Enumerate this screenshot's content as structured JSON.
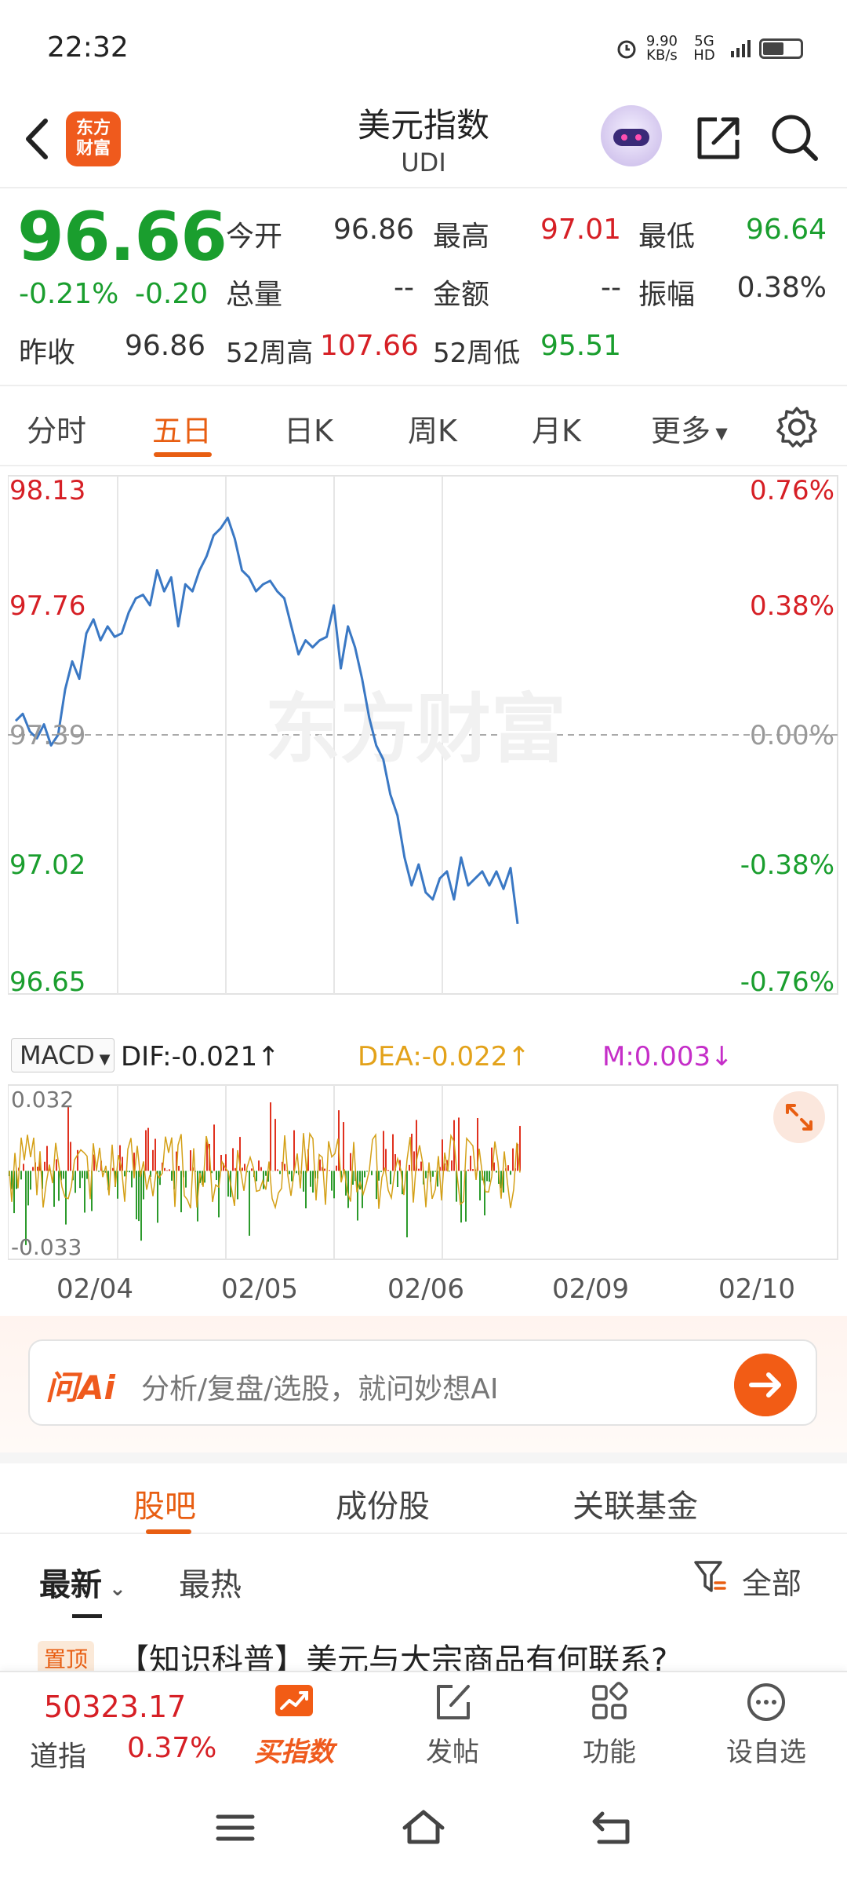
{
  "status_bar": {
    "time": "22:32",
    "net_speed_value": "9.90",
    "net_speed_unit": "KB/s",
    "network": "5G HD",
    "alarm_icon": "alarm-icon",
    "battery_icon": "battery-icon"
  },
  "header": {
    "back_icon": "back-arrow-icon",
    "logo_text_line1": "东方",
    "logo_text_line2": "财富",
    "title": "美元指数",
    "subtitle": "UDI",
    "robot_icon": "robot-avatar-icon",
    "share_icon": "share-icon",
    "search_icon": "search-icon"
  },
  "quote": {
    "last_price": "96.66",
    "change_pct": "-0.21%",
    "change_abs": "-0.20",
    "fields": {
      "open_label": "今开",
      "open": "96.86",
      "high_label": "最高",
      "high": "97.01",
      "low_label": "最低",
      "low": "96.64",
      "volume_label": "总量",
      "volume": "--",
      "amount_label": "金额",
      "amount": "--",
      "amplitude_label": "振幅",
      "amplitude": "0.38%",
      "prev_close_label": "昨收",
      "prev_close": "96.86",
      "high52_label": "52周高",
      "high52": "107.66",
      "low52_label": "52周低",
      "low52": "95.51"
    }
  },
  "tabs": {
    "items": [
      "分时",
      "五日",
      "日K",
      "周K",
      "月K",
      "更多"
    ],
    "active": "五日",
    "settings_icon": "gear-icon"
  },
  "chart_data": {
    "type": "line",
    "series": [
      {
        "values": [
          97.43,
          97.45,
          97.4,
          97.38,
          97.42,
          97.36,
          97.39,
          97.52,
          97.6,
          97.55,
          97.68,
          97.72,
          97.66,
          97.7,
          97.67,
          97.68,
          97.74,
          97.78,
          97.79,
          97.76,
          97.86,
          97.8,
          97.84,
          97.7,
          97.82,
          97.8,
          97.86,
          97.9,
          97.96,
          97.98,
          98.01,
          97.95,
          97.86,
          97.84,
          97.8,
          97.82,
          97.83,
          97.8,
          97.78,
          97.7,
          97.62,
          97.66,
          97.64,
          97.66,
          97.67,
          97.76,
          97.58,
          97.7,
          97.64,
          97.55,
          97.44,
          97.36,
          97.32,
          97.22,
          97.16,
          97.04,
          96.96,
          97.02,
          96.94,
          96.92,
          96.98,
          97.0,
          96.92,
          97.04,
          96.96,
          96.98,
          97.0,
          96.96,
          97.0,
          96.95,
          97.01,
          96.85
        ]
      }
    ],
    "x_labels": [
      "02/04",
      "02/05",
      "02/06",
      "02/09",
      "02/10"
    ],
    "y_ticks_left": [
      "98.13",
      "97.76",
      "97.39",
      "97.02",
      "96.65"
    ],
    "y_ticks_right": [
      "0.76%",
      "0.38%",
      "0.00%",
      "-0.38%",
      "-0.76%"
    ],
    "ylim": [
      96.65,
      98.13
    ],
    "reference_value": 97.39,
    "line_color": "#3a78c4",
    "watermark": "东方财富",
    "macd": {
      "indicator": "MACD",
      "dif_label": "DIF:-0.021↑",
      "dea_label": "DEA:-0.022↑",
      "m_label": "M:0.003↓",
      "ymax_label": "0.032",
      "ymin_label": "-0.033",
      "ylim": [
        -0.033,
        0.032
      ]
    }
  },
  "ai_search": {
    "logo": "问Ai",
    "placeholder": "分析/复盘/选股，就问妙想AI",
    "go_icon": "arrow-right-icon"
  },
  "section_tabs": {
    "items": [
      "股吧",
      "成份股",
      "关联基金"
    ],
    "active": "股吧"
  },
  "sort_bar": {
    "latest": "最新",
    "hot": "最热",
    "filter_label": "全部",
    "filter_icon": "filter-icon"
  },
  "post": {
    "badge": "置顶",
    "title": "【知识科普】美元与大宗商品有何联系?"
  },
  "bottom_nav": {
    "dji_value": "50323.17",
    "dji_name": "道指",
    "dji_pct": "0.37%",
    "items": [
      {
        "label": "买指数",
        "icon": "trend-chart-icon"
      },
      {
        "label": "发帖",
        "icon": "edit-icon"
      },
      {
        "label": "功能",
        "icon": "grid-icon"
      },
      {
        "label": "设自选",
        "icon": "more-dots-icon"
      }
    ]
  },
  "colors": {
    "up": "#d61f25",
    "down": "#1a9e2e",
    "accent": "#e85e12"
  }
}
